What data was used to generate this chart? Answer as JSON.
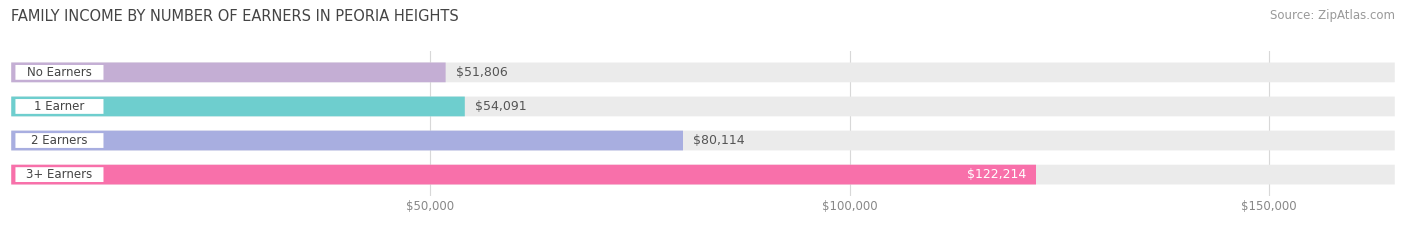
{
  "title": "FAMILY INCOME BY NUMBER OF EARNERS IN PEORIA HEIGHTS",
  "source": "Source: ZipAtlas.com",
  "categories": [
    "No Earners",
    "1 Earner",
    "2 Earners",
    "3+ Earners"
  ],
  "values": [
    51806,
    54091,
    80114,
    122214
  ],
  "labels": [
    "$51,806",
    "$54,091",
    "$80,114",
    "$122,214"
  ],
  "bar_colors": [
    "#c4aed4",
    "#6ecece",
    "#a8aee0",
    "#f870aa"
  ],
  "bar_bg_color": "#ebebeb",
  "xlim": [
    0,
    165000
  ],
  "xticks": [
    50000,
    100000,
    150000
  ],
  "xticklabels": [
    "$50,000",
    "$100,000",
    "$150,000"
  ],
  "background_color": "#ffffff",
  "title_fontsize": 10.5,
  "source_fontsize": 8.5,
  "label_fontsize": 9,
  "category_fontsize": 8.5,
  "bar_height": 0.58,
  "figsize": [
    14.06,
    2.33
  ],
  "dpi": 100
}
